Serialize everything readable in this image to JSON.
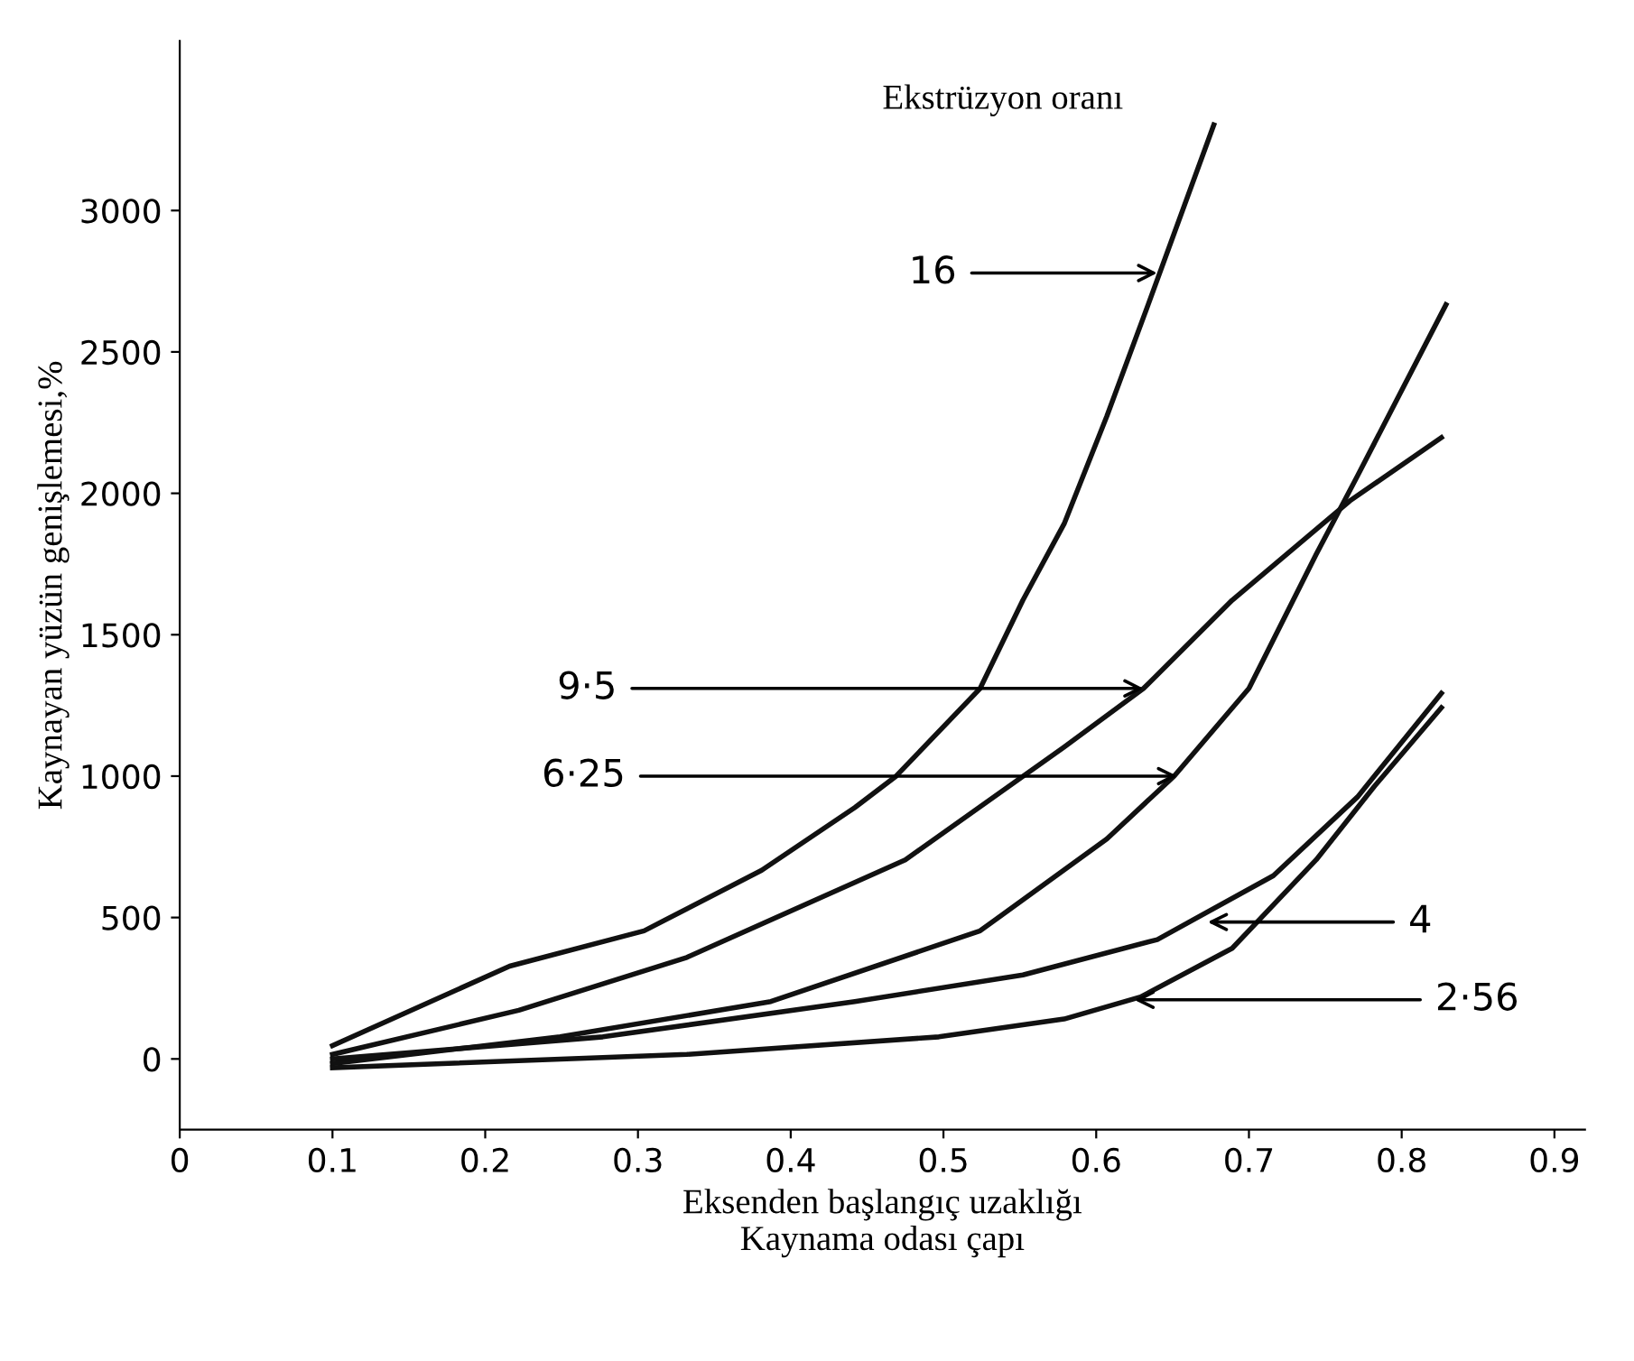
{
  "chart_data": {
    "type": "line",
    "xlabel": "Eksenden başlangıç uzaklığı\nKaynama odası çapı",
    "ylabel": "Kaynayan yüzün genişlemesi,%",
    "series": [
      {
        "color": "#111111",
        "x": [
          0.1,
          0.216,
          0.304,
          0.381,
          0.442,
          0.469,
          0.524,
          0.552,
          0.579,
          0.607,
          0.634,
          0.677
        ],
        "values": [
          47,
          328,
          453,
          667,
          889,
          1000,
          1310,
          1622,
          1892,
          2273,
          2667,
          3303
        ]
      },
      {
        "color": "#111111",
        "x": [
          0.1,
          0.222,
          0.332,
          0.475,
          0.579,
          0.631,
          0.689,
          0.766,
          0.826
        ],
        "values": [
          16,
          172,
          359,
          704,
          1103,
          1310,
          1622,
          1973,
          2197
        ]
      },
      {
        "color": "#111111",
        "x": [
          0.1,
          0.249,
          0.387,
          0.524,
          0.607,
          0.651,
          0.7,
          0.744,
          0.771,
          0.829
        ],
        "values": [
          -16,
          78,
          203,
          453,
          778,
          1000,
          1310,
          1784,
          2061,
          2667
        ]
      },
      {
        "color": "#111111",
        "x": [
          0.1,
          0.277,
          0.442,
          0.552,
          0.64,
          0.716,
          0.771,
          0.826
        ],
        "values": [
          0,
          78,
          203,
          297,
          422,
          648,
          926,
          1293
        ]
      },
      {
        "color": "#111111",
        "x": [
          0.1,
          0.332,
          0.497,
          0.579,
          0.629,
          0.689,
          0.744,
          0.782,
          0.826
        ],
        "values": [
          -31,
          16,
          78,
          141,
          219,
          391,
          704,
          963,
          1242
        ]
      }
    ],
    "annotations": [
      "Ekstrüzyon oranı",
      {
        "text": "16",
        "x": 0.64,
        "y": 2779
      },
      {
        "text": "9·5",
        "x": 0.631,
        "y": 1310
      },
      {
        "text": "6·25",
        "x": 0.653,
        "y": 1000
      },
      {
        "text": "4",
        "x": 0.673,
        "y": 484
      },
      {
        "text": "2·56",
        "x": 0.625,
        "y": 209
      }
    ],
    "xlim": [
      0,
      0.92
    ],
    "ylim": [
      -250,
      3600
    ],
    "xticks": [
      0,
      0.1,
      0.2,
      0.3,
      0.4,
      0.5,
      0.6,
      0.7,
      0.8,
      0.9
    ],
    "yticks": [
      0,
      500,
      1000,
      1500,
      2000,
      2500,
      3000
    ],
    "grid": false,
    "legend": false,
    "marker": "none",
    "line_style": "solid"
  }
}
